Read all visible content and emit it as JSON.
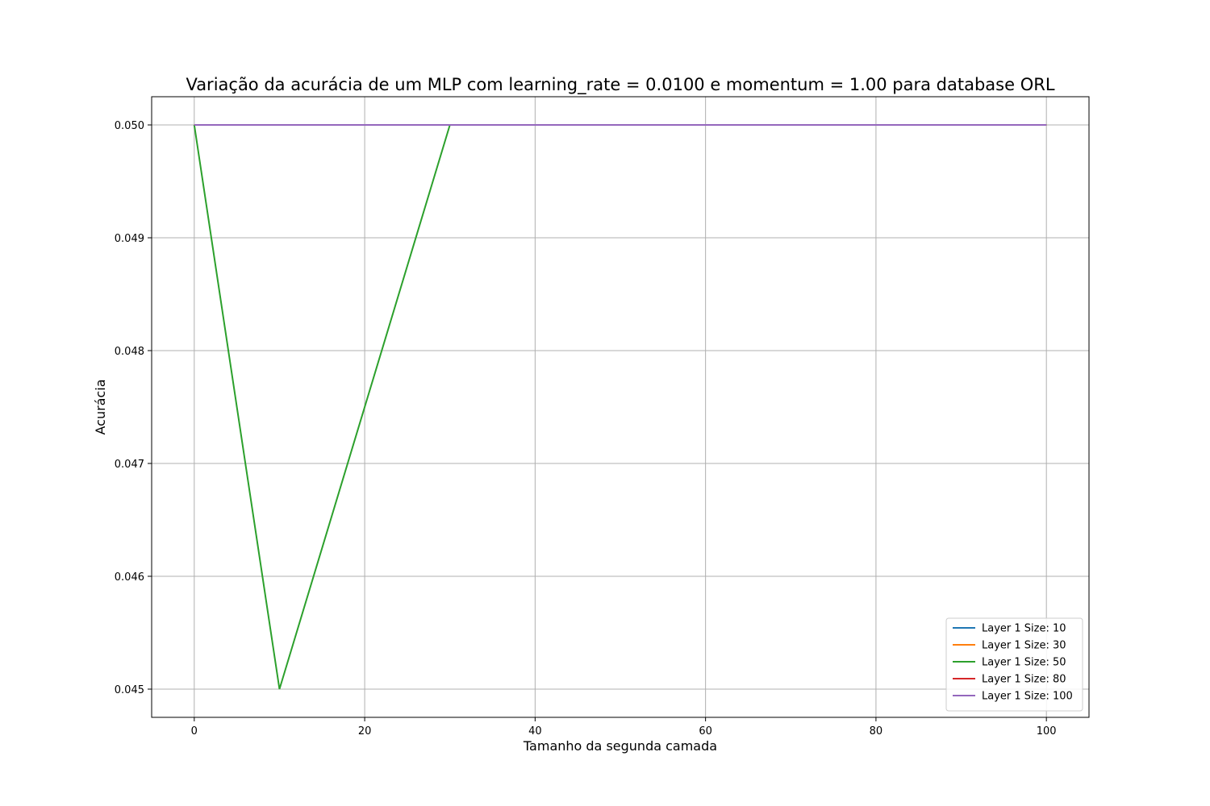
{
  "chart_data": {
    "type": "line",
    "title": "Variação da acurácia de um MLP com learning_rate = 0.0100 e momentum = 1.00 para database ORL",
    "xlabel": "Tamanho da segunda camada",
    "ylabel": "Acurácia",
    "xlim": [
      -5,
      105
    ],
    "ylim": [
      0.04475,
      0.05025
    ],
    "x_ticks": [
      0,
      20,
      40,
      60,
      80,
      100
    ],
    "y_ticks": [
      0.045,
      0.046,
      0.047,
      0.048,
      0.049,
      0.05
    ],
    "x_tick_labels": [
      "0",
      "20",
      "40",
      "60",
      "80",
      "100"
    ],
    "y_tick_labels": [
      "0.045",
      "0.046",
      "0.047",
      "0.048",
      "0.049",
      "0.050"
    ],
    "grid": true,
    "legend_position": "lower-right",
    "series": [
      {
        "name": "Layer 1 Size: 10",
        "color": "#1f77b4",
        "x": [
          0,
          10,
          30,
          50,
          80,
          100
        ],
        "values": [
          0.05,
          0.05,
          0.05,
          0.05,
          0.05,
          0.05
        ]
      },
      {
        "name": "Layer 1 Size: 30",
        "color": "#ff7f0e",
        "x": [
          0,
          10,
          30,
          50,
          80,
          100
        ],
        "values": [
          0.05,
          0.05,
          0.05,
          0.05,
          0.05,
          0.05
        ]
      },
      {
        "name": "Layer 1 Size: 50",
        "color": "#2ca02c",
        "x": [
          0,
          10,
          30,
          50,
          80,
          100
        ],
        "values": [
          0.05,
          0.045,
          0.05,
          0.05,
          0.05,
          0.05
        ]
      },
      {
        "name": "Layer 1 Size: 80",
        "color": "#d62728",
        "x": [
          0,
          10,
          30,
          50,
          80,
          100
        ],
        "values": [
          0.05,
          0.05,
          0.05,
          0.05,
          0.05,
          0.05
        ]
      },
      {
        "name": "Layer 1 Size: 100",
        "color": "#9467bd",
        "x": [
          0,
          10,
          30,
          50,
          80,
          100
        ],
        "values": [
          0.05,
          0.05,
          0.05,
          0.05,
          0.05,
          0.05
        ]
      }
    ]
  }
}
